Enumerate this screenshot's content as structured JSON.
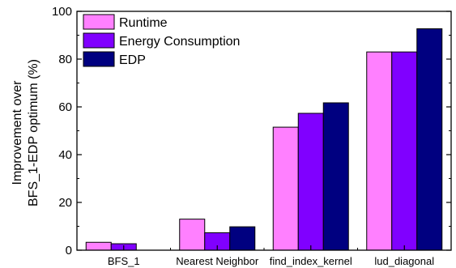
{
  "chart_data": {
    "type": "bar",
    "categories": [
      "BFS_1",
      "Nearest Neighbor",
      "find_index_kernel",
      "lud_diagonal"
    ],
    "series": [
      {
        "name": "Runtime",
        "color": "#ff80ff",
        "values": [
          3.3,
          13.0,
          51.5,
          83.0
        ]
      },
      {
        "name": "Energy Consumption",
        "color": "#8000ff",
        "values": [
          2.7,
          7.3,
          57.3,
          83.0
        ]
      },
      {
        "name": "EDP",
        "color": "#000080",
        "values": [
          0,
          9.8,
          61.7,
          92.7
        ]
      }
    ],
    "ylabel_line1": "Improvement over",
    "ylabel_line2": "BFS_1-EDP optimum (%)",
    "ylim": [
      0,
      100
    ],
    "yticks": [
      0,
      20,
      40,
      60,
      80,
      100
    ],
    "legend_position": "top-left",
    "grid": false
  }
}
